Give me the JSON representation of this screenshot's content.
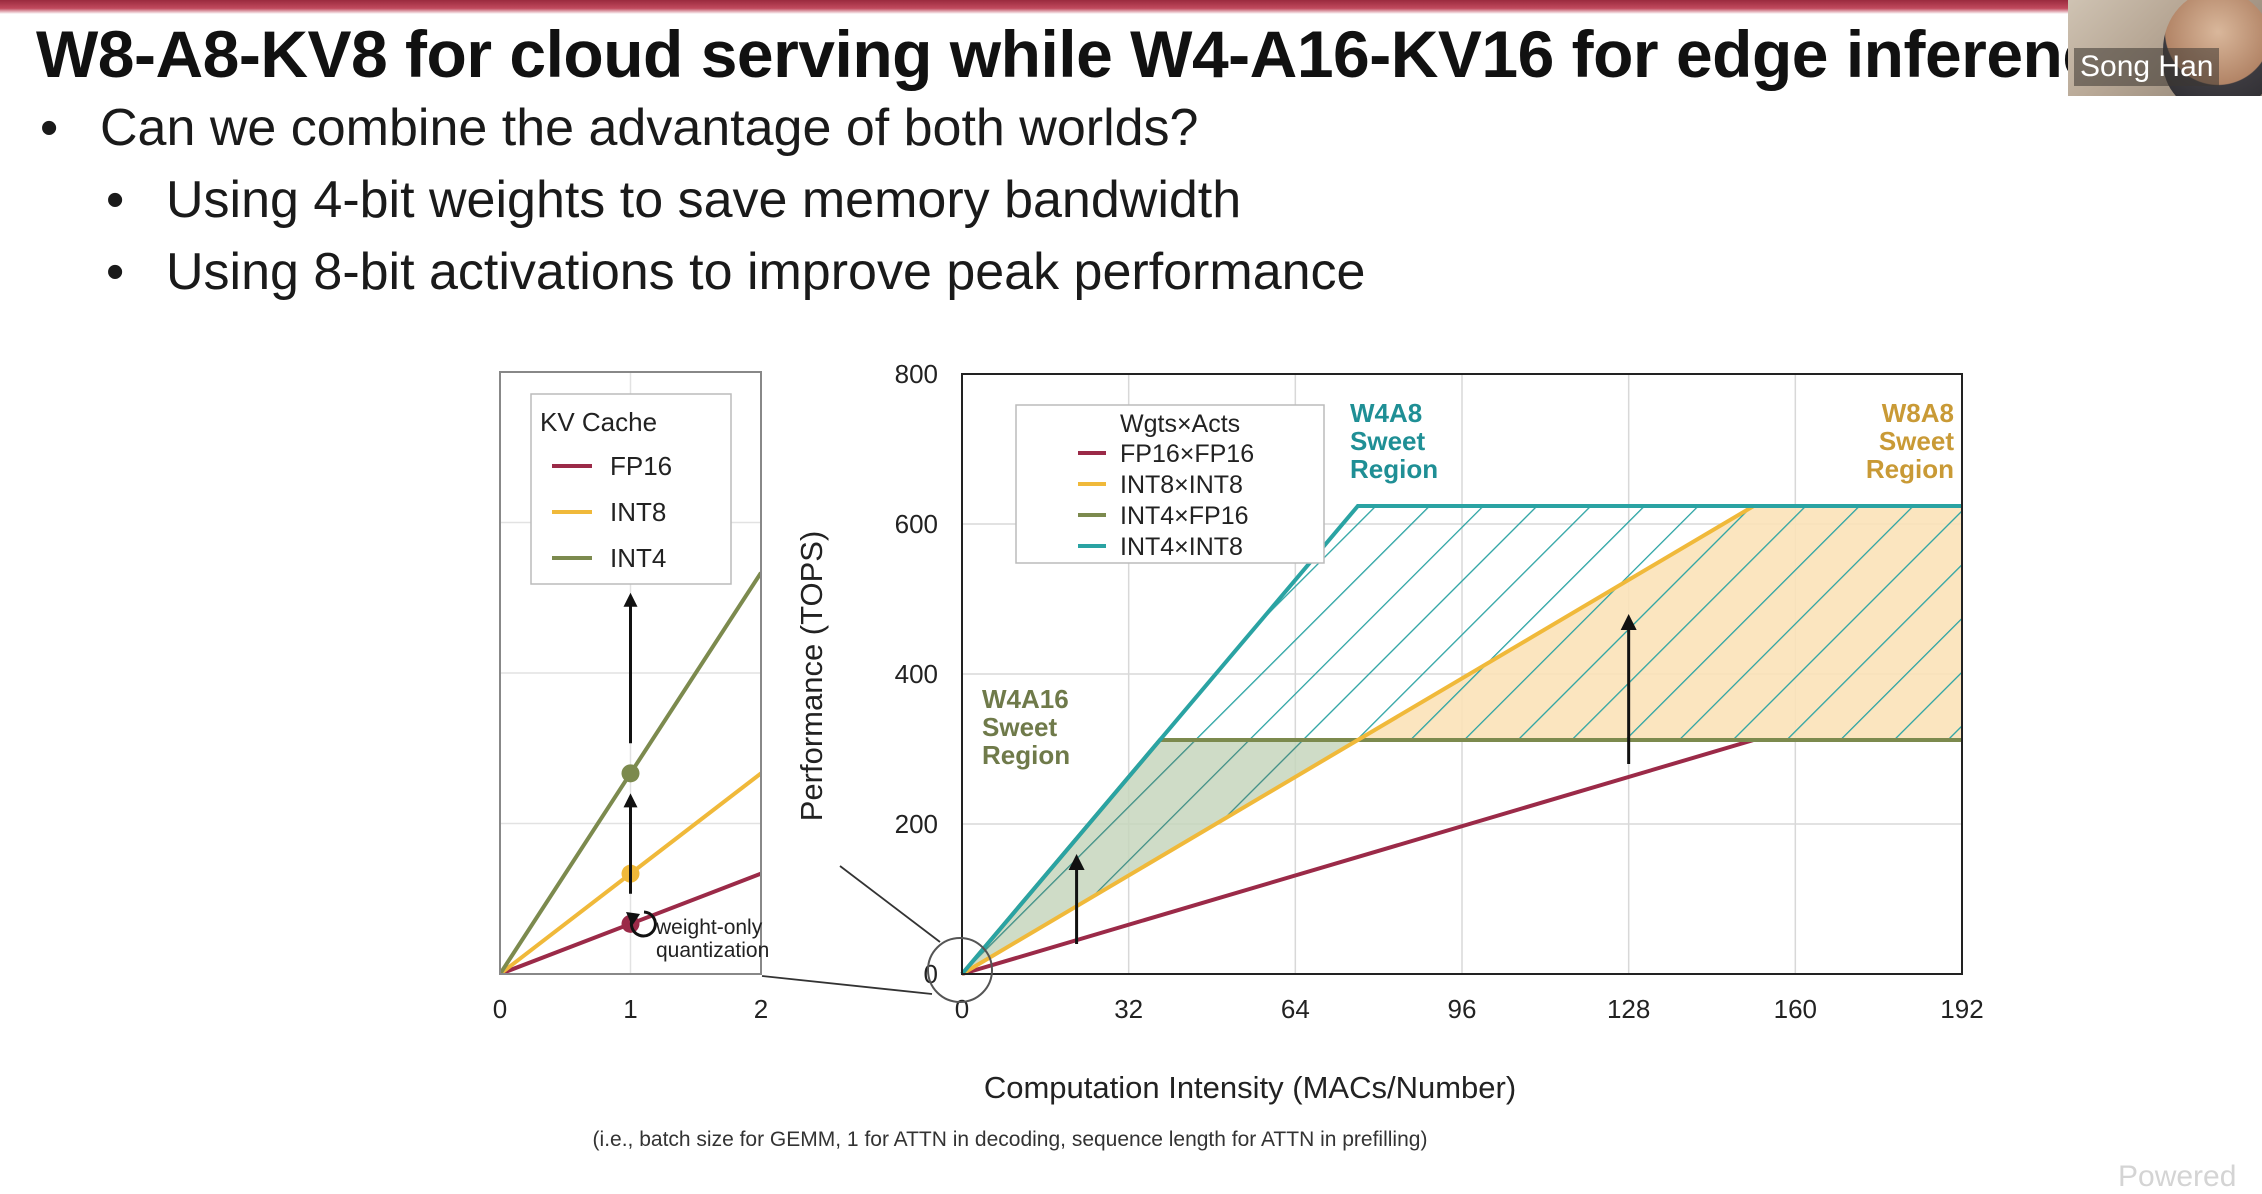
{
  "slide": {
    "headline": "W8-A8-KV8 for cloud serving while W4-A16-KV16 for edge inferenc",
    "bullet_symbol": "•",
    "bullets": [
      "Can we combine the advantage of both worlds?",
      "Using 4-bit weights to save memory bandwidth",
      "Using 8-bit activations to improve peak performance"
    ],
    "presenter_name": "Song Han",
    "watermark": "Powered",
    "footnote": "(i.e., batch size for GEMM, 1 for ATTN in decoding, sequence length for ATTN in prefilling)"
  },
  "colors": {
    "fp16": "#9b2a48",
    "int8": "#f0b93a",
    "int4": "#7c8a4e",
    "int4xint8": "#2aa3a3",
    "headline": "#111111",
    "title_accent": "#9a2a3e"
  },
  "chart_data": [
    {
      "type": "line",
      "panel": "kv-cache-inset",
      "legend_title": "KV Cache",
      "legend_position": "top-left",
      "x_ticks": [
        "0",
        "1",
        "2"
      ],
      "xlim": [
        0,
        2
      ],
      "series": [
        {
          "name": "FP16",
          "color_key": "fp16",
          "x": [
            0,
            2
          ],
          "y": [
            0,
            2
          ],
          "marker_at": 1
        },
        {
          "name": "INT8",
          "color_key": "int8",
          "x": [
            0,
            2
          ],
          "y": [
            0,
            4
          ],
          "marker_at": 1
        },
        {
          "name": "INT4",
          "color_key": "int4",
          "x": [
            0,
            2
          ],
          "y": [
            0,
            8
          ],
          "marker_at": 1
        }
      ],
      "annotation": "weight-only\nquantization",
      "grid": false
    },
    {
      "type": "line",
      "panel": "roofline",
      "xlabel": "Computation Intensity (MACs/Number)",
      "ylabel": "Performance (TOPS)",
      "xlim": [
        0,
        192
      ],
      "ylim": [
        0,
        800
      ],
      "x_ticks": [
        "0",
        "32",
        "64",
        "96",
        "128",
        "160",
        "192"
      ],
      "y_ticks": [
        "0",
        "200",
        "400",
        "600",
        "800"
      ],
      "legend_title": "Wgts×Acts",
      "legend_position": "top-left",
      "grid": true,
      "series": [
        {
          "name": "FP16×FP16",
          "color_key": "fp16",
          "x": [
            0,
            152,
            192
          ],
          "y": [
            0,
            312,
            312
          ]
        },
        {
          "name": "INT8×INT8",
          "color_key": "int8",
          "x": [
            0,
            152,
            192
          ],
          "y": [
            0,
            624,
            624
          ]
        },
        {
          "name": "INT4×FP16",
          "color_key": "int4",
          "x": [
            0,
            38,
            192
          ],
          "y": [
            0,
            312,
            312
          ]
        },
        {
          "name": "INT4×INT8",
          "color_key": "int4xint8",
          "x": [
            0,
            76,
            192
          ],
          "y": [
            0,
            624,
            624
          ]
        }
      ],
      "regions": [
        {
          "label": "W4A16\nSweet\nRegion",
          "color_key": "int4"
        },
        {
          "label": "W4A8\nSweet\nRegion",
          "color_key": "int4xint8"
        },
        {
          "label": "W8A8\nSweet\nRegion",
          "color_key": "int8"
        }
      ]
    }
  ]
}
